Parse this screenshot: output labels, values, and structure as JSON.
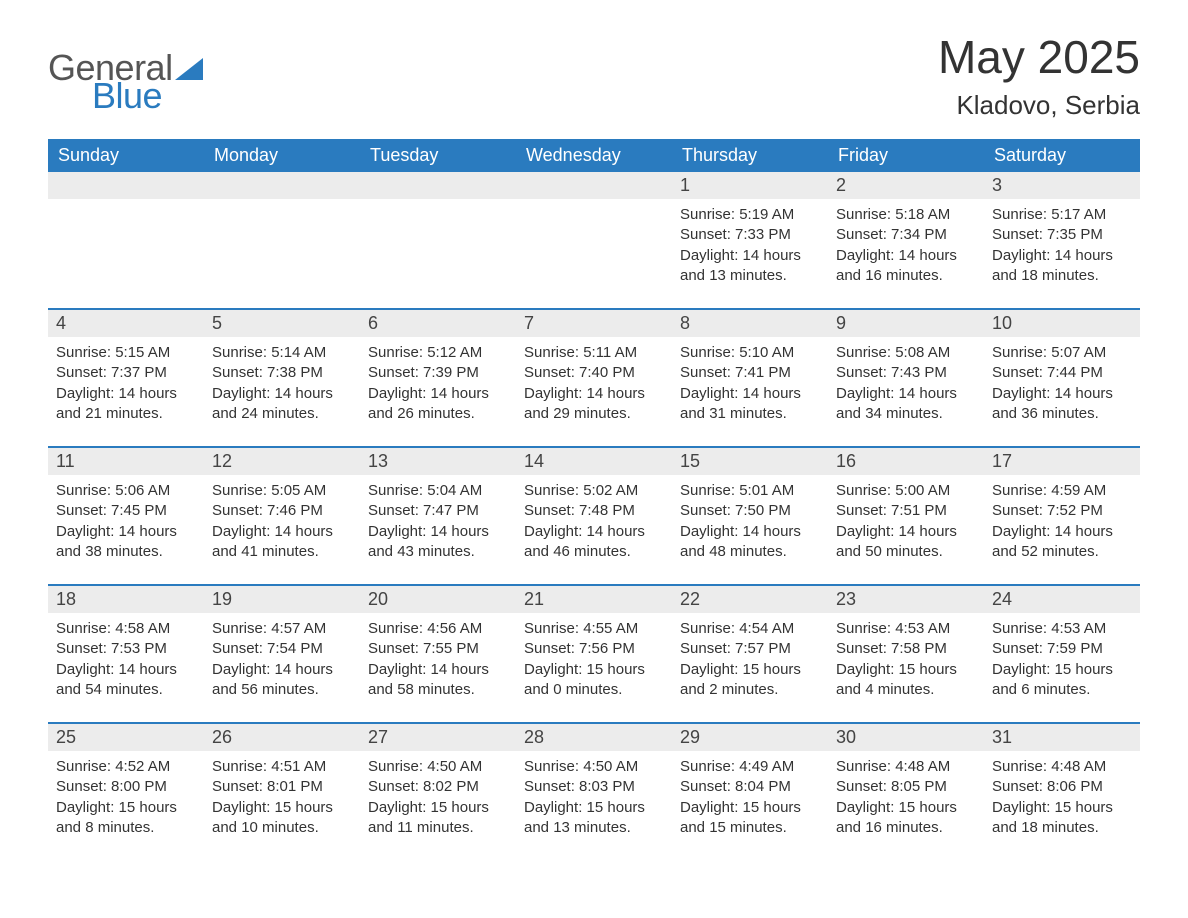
{
  "logo": {
    "word1": "General",
    "word2": "Blue",
    "accent_color": "#2a7bbf"
  },
  "title": {
    "month_year": "May 2025",
    "location": "Kladovo, Serbia"
  },
  "colors": {
    "header_bg": "#2a7bbf",
    "header_text": "#ffffff",
    "date_row_bg": "#ececec",
    "body_text": "#333333",
    "row_border": "#2a7bbf",
    "page_bg": "#ffffff"
  },
  "day_headers": [
    "Sunday",
    "Monday",
    "Tuesday",
    "Wednesday",
    "Thursday",
    "Friday",
    "Saturday"
  ],
  "weeks": [
    [
      {
        "day": "",
        "sunrise": "",
        "sunset": "",
        "daylight": ""
      },
      {
        "day": "",
        "sunrise": "",
        "sunset": "",
        "daylight": ""
      },
      {
        "day": "",
        "sunrise": "",
        "sunset": "",
        "daylight": ""
      },
      {
        "day": "",
        "sunrise": "",
        "sunset": "",
        "daylight": ""
      },
      {
        "day": "1",
        "sunrise": "Sunrise: 5:19 AM",
        "sunset": "Sunset: 7:33 PM",
        "daylight": "Daylight: 14 hours and 13 minutes."
      },
      {
        "day": "2",
        "sunrise": "Sunrise: 5:18 AM",
        "sunset": "Sunset: 7:34 PM",
        "daylight": "Daylight: 14 hours and 16 minutes."
      },
      {
        "day": "3",
        "sunrise": "Sunrise: 5:17 AM",
        "sunset": "Sunset: 7:35 PM",
        "daylight": "Daylight: 14 hours and 18 minutes."
      }
    ],
    [
      {
        "day": "4",
        "sunrise": "Sunrise: 5:15 AM",
        "sunset": "Sunset: 7:37 PM",
        "daylight": "Daylight: 14 hours and 21 minutes."
      },
      {
        "day": "5",
        "sunrise": "Sunrise: 5:14 AM",
        "sunset": "Sunset: 7:38 PM",
        "daylight": "Daylight: 14 hours and 24 minutes."
      },
      {
        "day": "6",
        "sunrise": "Sunrise: 5:12 AM",
        "sunset": "Sunset: 7:39 PM",
        "daylight": "Daylight: 14 hours and 26 minutes."
      },
      {
        "day": "7",
        "sunrise": "Sunrise: 5:11 AM",
        "sunset": "Sunset: 7:40 PM",
        "daylight": "Daylight: 14 hours and 29 minutes."
      },
      {
        "day": "8",
        "sunrise": "Sunrise: 5:10 AM",
        "sunset": "Sunset: 7:41 PM",
        "daylight": "Daylight: 14 hours and 31 minutes."
      },
      {
        "day": "9",
        "sunrise": "Sunrise: 5:08 AM",
        "sunset": "Sunset: 7:43 PM",
        "daylight": "Daylight: 14 hours and 34 minutes."
      },
      {
        "day": "10",
        "sunrise": "Sunrise: 5:07 AM",
        "sunset": "Sunset: 7:44 PM",
        "daylight": "Daylight: 14 hours and 36 minutes."
      }
    ],
    [
      {
        "day": "11",
        "sunrise": "Sunrise: 5:06 AM",
        "sunset": "Sunset: 7:45 PM",
        "daylight": "Daylight: 14 hours and 38 minutes."
      },
      {
        "day": "12",
        "sunrise": "Sunrise: 5:05 AM",
        "sunset": "Sunset: 7:46 PM",
        "daylight": "Daylight: 14 hours and 41 minutes."
      },
      {
        "day": "13",
        "sunrise": "Sunrise: 5:04 AM",
        "sunset": "Sunset: 7:47 PM",
        "daylight": "Daylight: 14 hours and 43 minutes."
      },
      {
        "day": "14",
        "sunrise": "Sunrise: 5:02 AM",
        "sunset": "Sunset: 7:48 PM",
        "daylight": "Daylight: 14 hours and 46 minutes."
      },
      {
        "day": "15",
        "sunrise": "Sunrise: 5:01 AM",
        "sunset": "Sunset: 7:50 PM",
        "daylight": "Daylight: 14 hours and 48 minutes."
      },
      {
        "day": "16",
        "sunrise": "Sunrise: 5:00 AM",
        "sunset": "Sunset: 7:51 PM",
        "daylight": "Daylight: 14 hours and 50 minutes."
      },
      {
        "day": "17",
        "sunrise": "Sunrise: 4:59 AM",
        "sunset": "Sunset: 7:52 PM",
        "daylight": "Daylight: 14 hours and 52 minutes."
      }
    ],
    [
      {
        "day": "18",
        "sunrise": "Sunrise: 4:58 AM",
        "sunset": "Sunset: 7:53 PM",
        "daylight": "Daylight: 14 hours and 54 minutes."
      },
      {
        "day": "19",
        "sunrise": "Sunrise: 4:57 AM",
        "sunset": "Sunset: 7:54 PM",
        "daylight": "Daylight: 14 hours and 56 minutes."
      },
      {
        "day": "20",
        "sunrise": "Sunrise: 4:56 AM",
        "sunset": "Sunset: 7:55 PM",
        "daylight": "Daylight: 14 hours and 58 minutes."
      },
      {
        "day": "21",
        "sunrise": "Sunrise: 4:55 AM",
        "sunset": "Sunset: 7:56 PM",
        "daylight": "Daylight: 15 hours and 0 minutes."
      },
      {
        "day": "22",
        "sunrise": "Sunrise: 4:54 AM",
        "sunset": "Sunset: 7:57 PM",
        "daylight": "Daylight: 15 hours and 2 minutes."
      },
      {
        "day": "23",
        "sunrise": "Sunrise: 4:53 AM",
        "sunset": "Sunset: 7:58 PM",
        "daylight": "Daylight: 15 hours and 4 minutes."
      },
      {
        "day": "24",
        "sunrise": "Sunrise: 4:53 AM",
        "sunset": "Sunset: 7:59 PM",
        "daylight": "Daylight: 15 hours and 6 minutes."
      }
    ],
    [
      {
        "day": "25",
        "sunrise": "Sunrise: 4:52 AM",
        "sunset": "Sunset: 8:00 PM",
        "daylight": "Daylight: 15 hours and 8 minutes."
      },
      {
        "day": "26",
        "sunrise": "Sunrise: 4:51 AM",
        "sunset": "Sunset: 8:01 PM",
        "daylight": "Daylight: 15 hours and 10 minutes."
      },
      {
        "day": "27",
        "sunrise": "Sunrise: 4:50 AM",
        "sunset": "Sunset: 8:02 PM",
        "daylight": "Daylight: 15 hours and 11 minutes."
      },
      {
        "day": "28",
        "sunrise": "Sunrise: 4:50 AM",
        "sunset": "Sunset: 8:03 PM",
        "daylight": "Daylight: 15 hours and 13 minutes."
      },
      {
        "day": "29",
        "sunrise": "Sunrise: 4:49 AM",
        "sunset": "Sunset: 8:04 PM",
        "daylight": "Daylight: 15 hours and 15 minutes."
      },
      {
        "day": "30",
        "sunrise": "Sunrise: 4:48 AM",
        "sunset": "Sunset: 8:05 PM",
        "daylight": "Daylight: 15 hours and 16 minutes."
      },
      {
        "day": "31",
        "sunrise": "Sunrise: 4:48 AM",
        "sunset": "Sunset: 8:06 PM",
        "daylight": "Daylight: 15 hours and 18 minutes."
      }
    ]
  ]
}
